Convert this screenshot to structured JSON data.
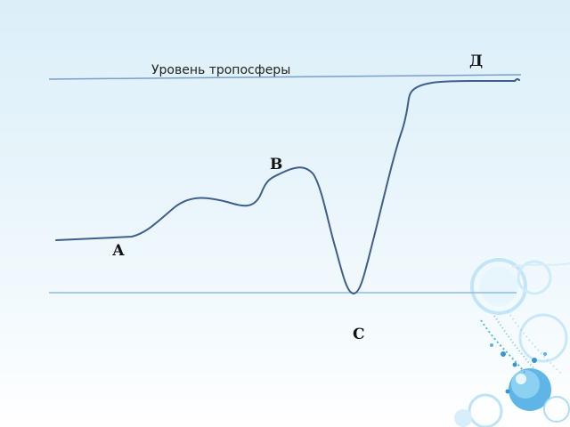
{
  "labels": {
    "troposphere_level": "Уровень тропосферы",
    "point_d": "Д",
    "point_b": "В",
    "point_a": "А",
    "point_c": "С"
  },
  "colors": {
    "curve": "#3c5f8e",
    "troposphere_line": "#7a9fc8",
    "base_line": "#8fbde0",
    "decor_blue": "#3aa3df",
    "decor_light": "#a9dcf5"
  }
}
